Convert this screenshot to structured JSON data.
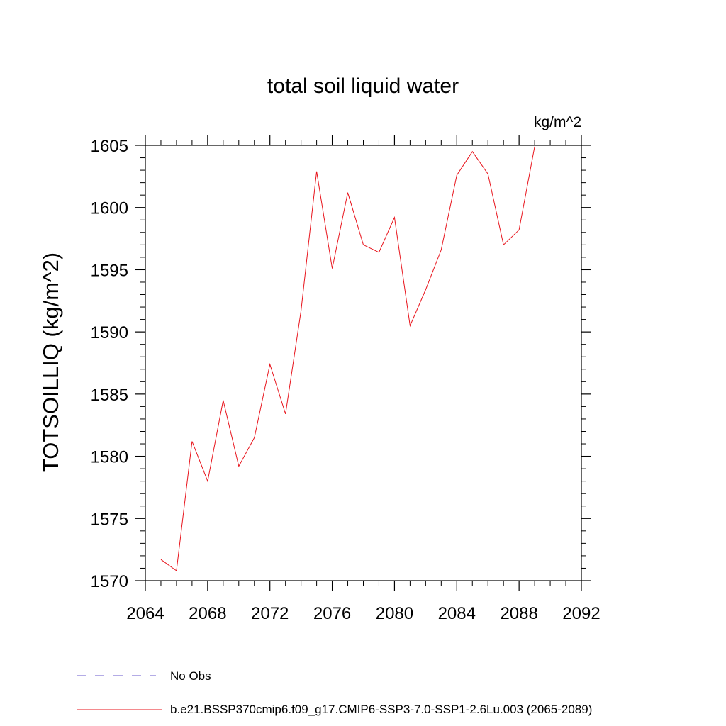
{
  "chart_data": {
    "type": "line",
    "title": "total soil liquid water",
    "units_label": "kg/m^2",
    "ylabel": "TOTSOILLIQ  (kg/m^2)",
    "xlabel": "",
    "xlim": [
      2064,
      2092
    ],
    "ylim": [
      1570,
      1605
    ],
    "x_ticks": [
      2064,
      2068,
      2072,
      2076,
      2080,
      2084,
      2088,
      2092
    ],
    "y_ticks": [
      1570,
      1575,
      1580,
      1585,
      1590,
      1595,
      1600,
      1605
    ],
    "grid": false,
    "legend": [
      {
        "label": "No Obs",
        "style": "dashed",
        "color": "#6a5acd"
      },
      {
        "label": "b.e21.BSSP370cmip6.f09_g17.CMIP6-SSP3-7.0-SSP1-2.6Lu.003 (2065-2089)",
        "style": "solid",
        "color": "#e8141c"
      }
    ],
    "series": [
      {
        "name": "b.e21.BSSP370cmip6.f09_g17.CMIP6-SSP3-7.0-SSP1-2.6Lu.003 (2065-2089)",
        "color": "#e8141c",
        "x": [
          2065,
          2066,
          2067,
          2068,
          2069,
          2070,
          2071,
          2072,
          2073,
          2074,
          2075,
          2076,
          2077,
          2078,
          2079,
          2080,
          2081,
          2082,
          2083,
          2084,
          2085,
          2086,
          2087,
          2088,
          2089
        ],
        "values": [
          1571.7,
          1570.8,
          1581.2,
          1578.0,
          1584.5,
          1579.2,
          1581.5,
          1587.4,
          1583.4,
          1591.7,
          1602.9,
          1595.1,
          1601.2,
          1597.0,
          1596.4,
          1599.2,
          1590.5,
          1593.4,
          1596.6,
          1602.6,
          1604.5,
          1602.7,
          1597.0,
          1598.2,
          1604.9
        ]
      }
    ]
  }
}
